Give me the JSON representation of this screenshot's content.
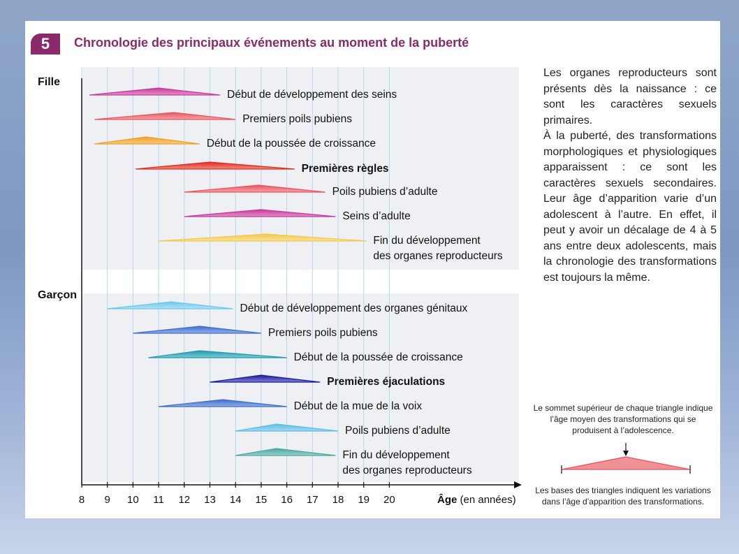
{
  "figure": {
    "number": "5",
    "title": "Chronologie des principaux événements au moment de la puberté"
  },
  "chart_data": {
    "type": "range-triangle",
    "x_axis": {
      "min": 8,
      "max": 20,
      "ticks": [
        8,
        9,
        10,
        11,
        12,
        13,
        14,
        15,
        16,
        17,
        18,
        19,
        20
      ],
      "label_bold": "Âge",
      "label_rest": " (en années)"
    },
    "groups": [
      {
        "name": "Fille",
        "events": [
          {
            "label": [
              "Début de développement des seins"
            ],
            "start": 8.3,
            "peak": 11.0,
            "end": 13.4,
            "color": "#c8379a",
            "bold": false
          },
          {
            "label": [
              "Premiers poils pubiens"
            ],
            "start": 8.5,
            "peak": 11.6,
            "end": 14.0,
            "color": "#e8555e",
            "bold": false
          },
          {
            "label": [
              "Début de la poussée de croissance"
            ],
            "start": 8.5,
            "peak": 10.5,
            "end": 12.6,
            "color": "#f0a020",
            "bold": false
          },
          {
            "label": [
              "Premières règles"
            ],
            "start": 10.1,
            "peak": 13.0,
            "end": 16.3,
            "color": "#e02a1e",
            "bold": true
          },
          {
            "label": [
              "Poils pubiens d’adulte"
            ],
            "start": 12.0,
            "peak": 14.9,
            "end": 17.5,
            "color": "#e8555e",
            "bold": false
          },
          {
            "label": [
              "Seins d’adulte"
            ],
            "start": 12.0,
            "peak": 15.0,
            "end": 17.9,
            "color": "#c8379a",
            "bold": false
          },
          {
            "label": [
              "Fin du développement",
              "des organes reproducteurs"
            ],
            "start": 11.0,
            "peak": 15.2,
            "end": 19.1,
            "color": "#f3c84a",
            "bold": false
          }
        ]
      },
      {
        "name": "Garçon",
        "events": [
          {
            "label": [
              "Début de développement des organes génitaux"
            ],
            "start": 9.0,
            "peak": 11.5,
            "end": 13.9,
            "color": "#6ec8ec",
            "bold": false
          },
          {
            "label": [
              "Premiers poils pubiens"
            ],
            "start": 10.0,
            "peak": 12.6,
            "end": 15.0,
            "color": "#3c6ecc",
            "bold": false
          },
          {
            "label": [
              "Début de la poussée de croissance"
            ],
            "start": 10.6,
            "peak": 12.6,
            "end": 16.0,
            "color": "#1c9cb0",
            "bold": false
          },
          {
            "label": [
              "Premières éjaculations"
            ],
            "start": 13.0,
            "peak": 15.0,
            "end": 17.3,
            "color": "#1a1aa0",
            "bold": true
          },
          {
            "label": [
              "Début de la mue de la voix"
            ],
            "start": 11.0,
            "peak": 13.5,
            "end": 16.0,
            "color": "#3c6ecc",
            "bold": false
          },
          {
            "label": [
              "Poils pubiens d’adulte"
            ],
            "start": 14.0,
            "peak": 15.6,
            "end": 18.0,
            "color": "#5cbce6",
            "bold": false
          },
          {
            "label": [
              "Fin du développement",
              "des organes reproducteurs"
            ],
            "start": 14.0,
            "peak": 15.6,
            "end": 17.9,
            "color": "#4aa8a0",
            "bold": false
          }
        ]
      }
    ]
  },
  "side_text": [
    "Les organes reproducteurs sont présents dès la naissance : ce sont les caractères sexuels primaires.",
    "À la puberté, des transformations morphologiques et physiologiques apparaissent : ce sont les caractères sexuels secondaires. Leur âge d’apparition varie d’un adolescent à l’autre. En effet, il peut y avoir un décalage de 4 à 5 ans entre deux adolescents, mais la chronologie des transformations est toujours la même."
  ],
  "legend": {
    "top": "Le sommet supérieur de chaque triangle indique l’âge moyen des transformations qui se produisent à l’adolescence.",
    "bottom": "Les bases des triangles indiquent les variations dans l’âge d’apparition des transformations.",
    "color": "#e8555e"
  }
}
